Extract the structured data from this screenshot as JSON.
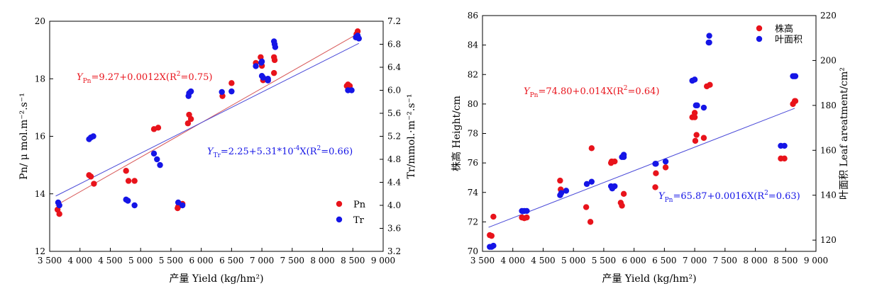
{
  "colors": {
    "red": "#e8131b",
    "blue": "#1515e6",
    "red_line": "#d85a5a",
    "blue_line": "#4a4ad8"
  },
  "chart_data": [
    {
      "type": "scatter",
      "xlabel": "产量 Yield (kg/hm²)",
      "ylabel_left": "Pn/ μ mol.m⁻².s⁻¹",
      "ylabel_right": "Tr/mmol.·m⁻².s⁻¹",
      "xlim": [
        3500,
        9000
      ],
      "ylim_left": [
        12,
        20
      ],
      "ylim_right": [
        3.2,
        7.2
      ],
      "x_ticks": [
        3500,
        4000,
        4500,
        5000,
        5500,
        6000,
        6500,
        7000,
        7500,
        8000,
        8500,
        9000
      ],
      "x_tick_labels": [
        "3 500",
        "4 000",
        "4 500",
        "5 000",
        "5 500",
        "6 000",
        "6 500",
        "7 000",
        "7 500",
        "8 000",
        "8 500",
        "9 000"
      ],
      "y_left_ticks": [
        12,
        14,
        16,
        18,
        20
      ],
      "y_right_ticks": [
        3.2,
        3.6,
        4.0,
        4.4,
        4.8,
        5.2,
        5.6,
        6.0,
        6.4,
        6.8,
        7.2
      ],
      "y_right_tick_labels": [
        "3.2",
        "3.6",
        "4.0",
        "4.4",
        "4.8",
        "5.2",
        "5.6",
        "6.0",
        "6.4",
        "6.8",
        "7.2"
      ],
      "legend": [
        "Pn",
        "Tr"
      ],
      "legend_position": "bottom-right",
      "grid": false,
      "series": [
        {
          "name": "Pn",
          "axis": "left",
          "color": "red",
          "points": [
            [
              3630,
              13.45
            ],
            [
              3660,
              13.3
            ],
            [
              4150,
              14.65
            ],
            [
              4180,
              14.6
            ],
            [
              4230,
              14.35
            ],
            [
              4760,
              14.8
            ],
            [
              4800,
              14.45
            ],
            [
              4900,
              14.45
            ],
            [
              5220,
              16.25
            ],
            [
              5290,
              16.3
            ],
            [
              5610,
              13.5
            ],
            [
              5620,
              13.55
            ],
            [
              5690,
              13.65
            ],
            [
              5780,
              16.45
            ],
            [
              5800,
              16.75
            ],
            [
              5830,
              16.6
            ],
            [
              6350,
              17.4
            ],
            [
              6500,
              17.85
            ],
            [
              6900,
              18.55
            ],
            [
              6980,
              18.75
            ],
            [
              7000,
              18.45
            ],
            [
              7020,
              17.95
            ],
            [
              7100,
              17.95
            ],
            [
              7200,
              18.2
            ],
            [
              7200,
              18.75
            ],
            [
              7210,
              18.65
            ],
            [
              8400,
              17.75
            ],
            [
              8420,
              17.8
            ],
            [
              8450,
              17.75
            ],
            [
              8560,
              19.55
            ],
            [
              8580,
              19.65
            ]
          ]
        },
        {
          "name": "Tr",
          "axis": "right",
          "color": "blue",
          "points": [
            [
              3640,
              4.05
            ],
            [
              3660,
              4.0
            ],
            [
              4150,
              5.15
            ],
            [
              4180,
              5.18
            ],
            [
              4220,
              5.2
            ],
            [
              4760,
              4.1
            ],
            [
              4790,
              4.08
            ],
            [
              4900,
              4.0
            ],
            [
              5220,
              4.9
            ],
            [
              5270,
              4.8
            ],
            [
              5320,
              4.7
            ],
            [
              5620,
              4.05
            ],
            [
              5690,
              4.0
            ],
            [
              5800,
              5.95
            ],
            [
              5830,
              5.98
            ],
            [
              5790,
              5.9
            ],
            [
              6340,
              5.97
            ],
            [
              6500,
              5.98
            ],
            [
              6900,
              6.42
            ],
            [
              6990,
              6.48
            ],
            [
              7000,
              6.5
            ],
            [
              7000,
              6.25
            ],
            [
              7020,
              6.22
            ],
            [
              7100,
              6.2
            ],
            [
              7100,
              6.17
            ],
            [
              7200,
              6.85
            ],
            [
              7210,
              6.8
            ],
            [
              7220,
              6.75
            ],
            [
              8420,
              6.0
            ],
            [
              8480,
              6.0
            ],
            [
              8550,
              6.92
            ],
            [
              8580,
              6.95
            ],
            [
              8600,
              6.9
            ]
          ]
        }
      ],
      "fits": [
        {
          "series": "Pn",
          "axis": "left",
          "color": "red",
          "intercept": 9.27,
          "slope": 0.0012,
          "x_range": [
            3600,
            8600
          ],
          "label_main": "Y",
          "label_sub": "Pn",
          "label_rest": "=9.27+0.0012X(R",
          "label_sup": "2",
          "label_end": "=0.75)"
        },
        {
          "series": "Tr",
          "axis": "right",
          "color": "blue",
          "intercept": 2.25,
          "slope": 0.000531,
          "x_range": [
            3600,
            8600
          ],
          "label_main": "Y",
          "label_sub": "Tr",
          "label_rest": "=2.25+5.31*10",
          "label_pow": "-4",
          "label_rest2": "X(R",
          "label_sup": "2",
          "label_end": "=0.66)"
        }
      ]
    },
    {
      "type": "scatter",
      "xlabel": "产量 Yield (kg/hm²)",
      "ylabel_left": "株高 Height/cm",
      "ylabel_right": "叶面积 Leaf areatment/cm²",
      "xlim": [
        3500,
        9000
      ],
      "ylim_left": [
        70,
        86
      ],
      "ylim_right": [
        115,
        220
      ],
      "x_ticks": [
        3500,
        4000,
        4500,
        5000,
        5500,
        6000,
        6500,
        7000,
        7500,
        8000,
        8500,
        9000
      ],
      "x_tick_labels": [
        "3 500",
        "4 000",
        "4 500",
        "5 000",
        "5 500",
        "6 000",
        "6 500",
        "7 000",
        "7 500",
        "8 000",
        "8 500",
        "9 000"
      ],
      "y_left_ticks": [
        70,
        72,
        74,
        76,
        78,
        80,
        82,
        84,
        86
      ],
      "y_right_ticks": [
        120,
        140,
        160,
        180,
        200,
        220
      ],
      "y_right_tick_labels": [
        "120",
        "140",
        "160",
        "180",
        "200",
        "220"
      ],
      "legend": [
        "株高",
        "叶面积"
      ],
      "legend_position": "top-right",
      "grid": false,
      "series": [
        {
          "name": "株高",
          "axis": "left",
          "color": "red",
          "points": [
            [
              3620,
              71.1
            ],
            [
              3650,
              71.05
            ],
            [
              3680,
              72.35
            ],
            [
              4150,
              72.3
            ],
            [
              4190,
              72.25
            ],
            [
              4230,
              72.3
            ],
            [
              4780,
              74.8
            ],
            [
              4790,
              74.2
            ],
            [
              5210,
              73.0
            ],
            [
              5280,
              72.0
            ],
            [
              5300,
              77.0
            ],
            [
              5620,
              76.0
            ],
            [
              5630,
              76.1
            ],
            [
              5680,
              76.1
            ],
            [
              5780,
              73.3
            ],
            [
              5800,
              73.1
            ],
            [
              5830,
              73.9
            ],
            [
              6350,
              74.35
            ],
            [
              6360,
              75.3
            ],
            [
              6520,
              75.7
            ],
            [
              6960,
              79.1
            ],
            [
              7000,
              79.4
            ],
            [
              7000,
              79.1
            ],
            [
              7010,
              77.5
            ],
            [
              7030,
              77.9
            ],
            [
              7150,
              77.7
            ],
            [
              7200,
              81.2
            ],
            [
              7250,
              81.3
            ],
            [
              8420,
              76.3
            ],
            [
              8480,
              76.3
            ],
            [
              8620,
              80.0
            ],
            [
              8650,
              80.2
            ],
            [
              8660,
              80.2
            ]
          ]
        },
        {
          "name": "叶面积",
          "axis": "right",
          "color": "blue",
          "points": [
            [
              3620,
              117
            ],
            [
              3650,
              117
            ],
            [
              3680,
              117.5
            ],
            [
              4150,
              133
            ],
            [
              4190,
              133
            ],
            [
              4230,
              133
            ],
            [
              4780,
              140
            ],
            [
              4800,
              141
            ],
            [
              4880,
              142
            ],
            [
              5220,
              145
            ],
            [
              5300,
              146
            ],
            [
              5620,
              144
            ],
            [
              5640,
              143
            ],
            [
              5680,
              144
            ],
            [
              5800,
              157
            ],
            [
              5830,
              158
            ],
            [
              5830,
              157
            ],
            [
              6350,
              154
            ],
            [
              6360,
              154
            ],
            [
              6520,
              155
            ],
            [
              6960,
              191
            ],
            [
              7000,
              191.5
            ],
            [
              7020,
              180
            ],
            [
              7040,
              180
            ],
            [
              7150,
              179
            ],
            [
              7230,
              208
            ],
            [
              7240,
              208
            ],
            [
              7240,
              211
            ],
            [
              8420,
              162
            ],
            [
              8480,
              162
            ],
            [
              8620,
              193
            ],
            [
              8640,
              193
            ],
            [
              8660,
              193
            ]
          ]
        }
      ],
      "fits": [
        {
          "series": "株高",
          "axis": "left",
          "color": "red",
          "intercept": 74.8,
          "slope": 0.014,
          "x_range": [
            3600,
            8650
          ],
          "label_main": "Y",
          "label_sub": "Pn",
          "label_rest": "=74.80+0.014X(R",
          "label_sup": "2",
          "label_end": "=0.64)"
        },
        {
          "series": "叶面积",
          "axis": "left",
          "color": "blue",
          "intercept": 65.87,
          "slope": 0.0016,
          "x_range": [
            3600,
            8650
          ],
          "label_main": "Y",
          "label_sub": "Pn",
          "label_rest": "=65.87+0.0016X(R",
          "label_sup": "2",
          "label_end": "=0.63)"
        }
      ]
    }
  ]
}
